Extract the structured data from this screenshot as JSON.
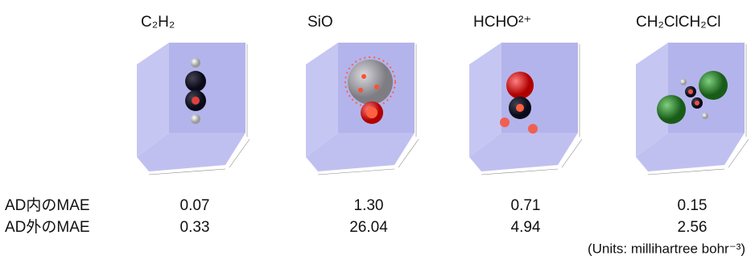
{
  "molecules": [
    "C₂H₂",
    "SiO",
    "HCHO²⁺",
    "CH₂ClCH₂Cl"
  ],
  "table": {
    "rows": [
      {
        "label": "AD内のMAE",
        "values": [
          "0.07",
          "1.30",
          "0.71",
          "0.15"
        ]
      },
      {
        "label": "AD外のMAE",
        "values": [
          "0.33",
          "26.04",
          "4.94",
          "2.56"
        ]
      }
    ]
  },
  "units": "(Units: millihartree bohr⁻³)"
}
